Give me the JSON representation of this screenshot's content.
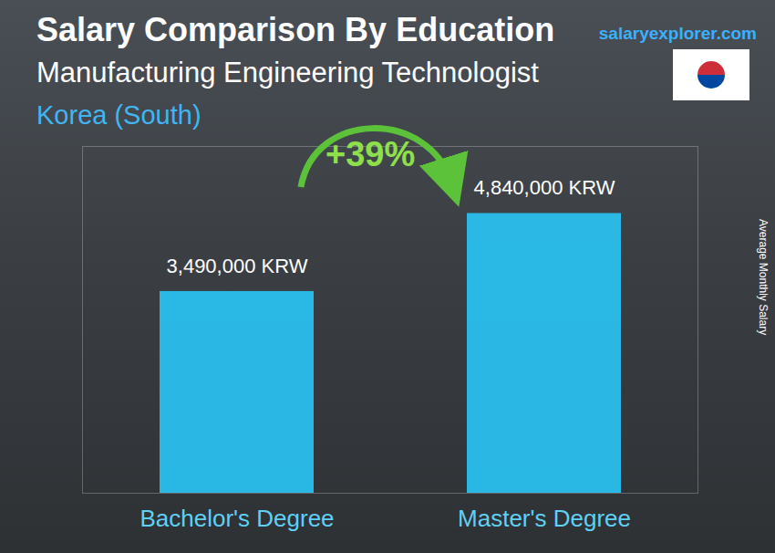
{
  "chart_data": {
    "type": "bar",
    "title": "Salary Comparison By Education",
    "subtitle": "Manufacturing Engineering Technologist",
    "location": "Korea (South)",
    "source": "salaryexplorer.com",
    "y_label": "Average Monthly Salary",
    "categories": [
      "Bachelor's Degree",
      "Master's Degree"
    ],
    "values": [
      3490000,
      4840000
    ],
    "value_labels": [
      "3,490,000 KRW",
      "4,840,000 KRW"
    ],
    "data_labels": true,
    "color": "#29c5f6",
    "ylim": [
      0,
      6000000
    ],
    "yticks": [],
    "tick_labels": "x",
    "grid": false,
    "annotations": [
      {
        "value": 39,
        "label": "+39%"
      }
    ]
  }
}
